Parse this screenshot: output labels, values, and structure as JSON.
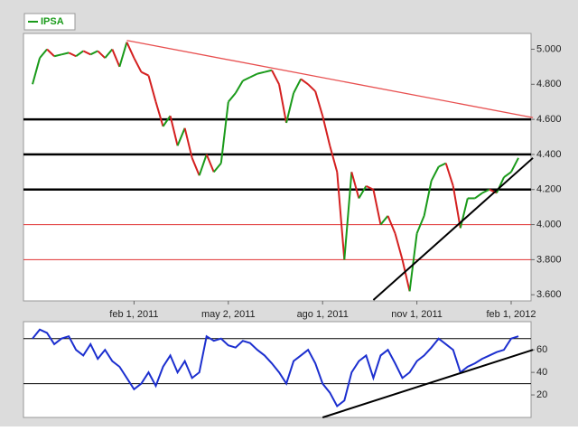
{
  "chart_data": [
    {
      "type": "candle-line",
      "categories": [
        null,
        null,
        null,
        null,
        null,
        null,
        null,
        null,
        null,
        null,
        null,
        null,
        null,
        null,
        "feb 1, 2011",
        null,
        null,
        null,
        null,
        null,
        null,
        null,
        null,
        null,
        null,
        null,
        null,
        "may 2, 2011",
        null,
        null,
        null,
        null,
        null,
        null,
        null,
        null,
        null,
        null,
        null,
        null,
        "ago 1, 2011",
        null,
        null,
        null,
        null,
        null,
        null,
        null,
        null,
        null,
        null,
        null,
        null,
        "nov 1, 2011",
        null,
        null,
        null,
        null,
        null,
        null,
        null,
        null,
        null,
        null,
        null,
        null,
        "feb 1, 2012",
        null
      ],
      "series": [
        {
          "name": "IPSA",
          "color": "#1a9a1a",
          "down_color": "#d42020",
          "values": [
            4800,
            4950,
            5000,
            4960,
            4970,
            4980,
            4960,
            4990,
            4970,
            4990,
            4950,
            5000,
            4900,
            5040,
            4950,
            4870,
            4850,
            4700,
            4560,
            4620,
            4450,
            4550,
            4380,
            4280,
            4400,
            4300,
            4350,
            4700,
            4750,
            4820,
            4840,
            4860,
            4870,
            4880,
            4800,
            4580,
            4750,
            4830,
            4800,
            4760,
            4620,
            4450,
            4300,
            3800,
            4300,
            4150,
            4220,
            4200,
            4000,
            4050,
            3950,
            3800,
            3620,
            3950,
            4050,
            4250,
            4330,
            4350,
            4220,
            3980,
            4150,
            4150,
            4180,
            4200,
            4180,
            4270,
            4300,
            4380
          ]
        }
      ],
      "ylim": [
        3565,
        5090
      ],
      "yticks": [
        {
          "value": 3600,
          "label": "3.600"
        },
        {
          "value": 3800,
          "label": "3.800"
        },
        {
          "value": 4000,
          "label": "4.000"
        },
        {
          "value": 4200,
          "label": "4.200"
        },
        {
          "value": 4400,
          "label": "4.400"
        },
        {
          "value": 4600,
          "label": "4.600"
        },
        {
          "value": 4800,
          "label": "4.800"
        },
        {
          "value": 5000,
          "label": "5.000"
        }
      ],
      "hlines": [
        {
          "value": 4600,
          "color": "#000000"
        },
        {
          "value": 4400,
          "color": "#000000"
        },
        {
          "value": 4200,
          "color": "#000000"
        },
        {
          "value": 4000,
          "color": "#e03030"
        },
        {
          "value": 3800,
          "color": "#e03030"
        }
      ],
      "trendlines": [
        {
          "x": [
            13,
            69
          ],
          "y": [
            5050,
            4610
          ],
          "color": "#e85050"
        },
        {
          "x": [
            47,
            69
          ],
          "y": [
            3570,
            4380
          ],
          "color": "#000000"
        }
      ]
    },
    {
      "type": "line",
      "series": [
        {
          "color": "#1c2fcf",
          "values": [
            70,
            78,
            75,
            65,
            70,
            72,
            60,
            55,
            65,
            52,
            60,
            50,
            45,
            35,
            25,
            30,
            40,
            28,
            45,
            55,
            40,
            50,
            35,
            40,
            72,
            68,
            70,
            64,
            62,
            68,
            66,
            60,
            55,
            48,
            40,
            30,
            50,
            55,
            60,
            48,
            30,
            22,
            10,
            15,
            40,
            50,
            55,
            35,
            55,
            60,
            48,
            35,
            40,
            50,
            55,
            62,
            70,
            65,
            60,
            40,
            45,
            48,
            52,
            55,
            58,
            60,
            70,
            72
          ]
        }
      ],
      "ylim": [
        0,
        85
      ],
      "yticks": [
        20,
        40,
        60
      ],
      "hlines": [
        {
          "value": 70,
          "color": "#000000"
        },
        {
          "value": 30,
          "color": "#000000"
        }
      ],
      "trendlines": [
        {
          "x": [
            40,
            69
          ],
          "y": [
            0,
            60
          ],
          "color": "#000000"
        }
      ]
    }
  ]
}
